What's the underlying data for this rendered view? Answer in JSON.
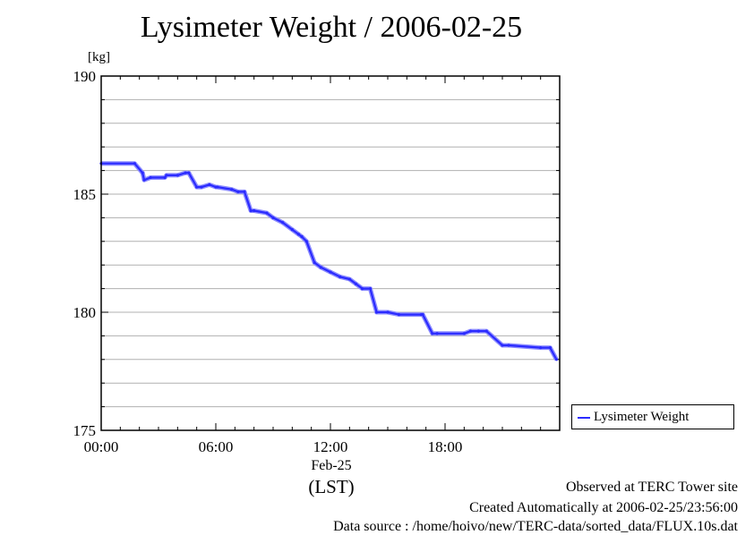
{
  "chart_data": {
    "type": "line",
    "title": "Lysimeter Weight / 2006-02-25",
    "ylabel": "[kg]",
    "xlabel_date": "Feb-25",
    "xlabel_unit": "(LST)",
    "x_ticks": [
      "00:00",
      "06:00",
      "12:00",
      "18:00"
    ],
    "y_ticks": [
      "175",
      "180",
      "185",
      "190"
    ],
    "xlim": [
      "00:00",
      "24:00"
    ],
    "ylim": [
      175,
      190
    ],
    "grid": true,
    "legend_position": "bottom-right, outside plot",
    "series": [
      {
        "name": "Lysimeter Weight",
        "color": "#2b2bff",
        "x": [
          "00:00",
          "01:45",
          "02:10",
          "02:15",
          "02:35",
          "03:20",
          "03:25",
          "04:00",
          "04:25",
          "04:35",
          "05:00",
          "05:15",
          "05:40",
          "06:00",
          "06:05",
          "06:50",
          "07:10",
          "07:30",
          "07:50",
          "08:00",
          "08:40",
          "09:00",
          "09:30",
          "10:00",
          "10:20",
          "10:30",
          "10:45",
          "11:10",
          "11:30",
          "12:00",
          "12:30",
          "13:00",
          "13:20",
          "13:40",
          "14:05",
          "14:25",
          "15:00",
          "15:35",
          "16:45",
          "16:50",
          "17:20",
          "17:35",
          "19:00",
          "19:20",
          "19:45",
          "20:10",
          "21:00",
          "21:20",
          "23:00",
          "23:30",
          "23:50"
        ],
        "y": [
          186.3,
          186.3,
          185.9,
          185.6,
          185.7,
          185.7,
          185.8,
          185.8,
          185.9,
          185.9,
          185.3,
          185.3,
          185.4,
          185.3,
          185.3,
          185.2,
          185.1,
          185.1,
          184.3,
          184.3,
          184.2,
          184.0,
          183.8,
          183.5,
          183.3,
          183.2,
          183.0,
          182.1,
          181.9,
          181.7,
          181.5,
          181.4,
          181.2,
          181.0,
          181.0,
          180.0,
          180.0,
          179.9,
          179.9,
          179.9,
          179.1,
          179.1,
          179.1,
          179.2,
          179.2,
          179.2,
          178.6,
          178.6,
          178.5,
          178.5,
          178.0
        ]
      }
    ]
  },
  "footer": {
    "observed": "Observed at TERC Tower site",
    "created": "Created Automatically at 2006-02-25/23:56:00",
    "source": "Data source : /home/hoivo/new/TERC-data/sorted_data/FLUX.10s.dat"
  }
}
